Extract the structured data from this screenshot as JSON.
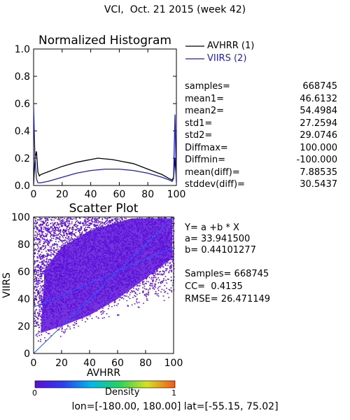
{
  "header": {
    "title": "VCI,  Oct. 21 2015 (week 42)"
  },
  "colors": {
    "avhrr": "#000000",
    "viirs": "#1f1fc0",
    "scatter": "#5b10d8",
    "fit_line": "#2a5cff"
  },
  "legend": {
    "avhrr_label": "AVHRR (1)",
    "viirs_label": "VIIRS (2)"
  },
  "stats": [
    {
      "key": "samples=",
      "value": "668745"
    },
    {
      "key": "mean1=",
      "value": "46.6132"
    },
    {
      "key": "mean2=",
      "value": "54.4984"
    },
    {
      "key": "std1=",
      "value": "27.2594"
    },
    {
      "key": "std2=",
      "value": "29.0746"
    },
    {
      "key": "Diffmax=",
      "value": "100.000"
    },
    {
      "key": "Diffmin=",
      "value": "-100.000"
    },
    {
      "key": "mean(diff)=",
      "value": "7.88535"
    },
    {
      "key": "stddev(diff)=",
      "value": "30.5437"
    }
  ],
  "fit": {
    "equation": "Y= a +b * X",
    "a_text": "a= 33.941500",
    "b_text": "b= 0.44101277",
    "samples_text": "Samples= 668745",
    "cc_text": "CC=  0.4135",
    "rmse_text": "RMSE= 26.471149"
  },
  "colorbar": {
    "min_label": "0",
    "max_label": "1",
    "title": "Density"
  },
  "footer": {
    "bounds": "lon=[-180.00, 180.00] lat=[-55.15, 75.02]"
  },
  "chart_data": [
    {
      "type": "line",
      "title": "Normalized Histogram",
      "xlim": [
        0,
        100
      ],
      "ylim": [
        0,
        1.0
      ],
      "xticks": [
        "0",
        "20",
        "40",
        "60",
        "80",
        "100"
      ],
      "yticks": [
        "0.0",
        "0.2",
        "0.4",
        "0.6",
        "0.8",
        "1.0"
      ],
      "series": [
        {
          "name": "AVHRR (1)",
          "x": [
            0,
            1,
            2,
            3,
            4,
            5,
            10,
            20,
            30,
            40,
            45,
            50,
            55,
            60,
            70,
            80,
            90,
            95,
            97,
            98,
            99,
            100
          ],
          "y": [
            0.01,
            0.2,
            0.25,
            0.1,
            0.07,
            0.08,
            0.1,
            0.14,
            0.17,
            0.19,
            0.2,
            0.195,
            0.19,
            0.18,
            0.16,
            0.12,
            0.08,
            0.05,
            0.04,
            0.06,
            0.2,
            0.03
          ]
        },
        {
          "name": "VIIRS (2)",
          "x": [
            0,
            1,
            2,
            3,
            5,
            10,
            20,
            30,
            40,
            50,
            55,
            60,
            70,
            80,
            90,
            95,
            97,
            98,
            99,
            100
          ],
          "y": [
            0.57,
            0.2,
            0.05,
            0.02,
            0.02,
            0.03,
            0.06,
            0.09,
            0.11,
            0.12,
            0.12,
            0.12,
            0.11,
            0.09,
            0.06,
            0.04,
            0.03,
            0.05,
            0.52,
            0.02
          ]
        }
      ]
    },
    {
      "type": "scatter",
      "title": "Scatter Plot",
      "xlabel": "AVHRR",
      "ylabel": "VIIRS",
      "xlim": [
        0,
        100
      ],
      "ylim": [
        0,
        100
      ],
      "xticks": [
        "0",
        "20",
        "40",
        "60",
        "80",
        "100"
      ],
      "yticks": [
        "0",
        "20",
        "40",
        "60",
        "80",
        "100"
      ],
      "regression": {
        "a": 33.9415,
        "b": 0.44101277
      },
      "note": "dense cloud of points spanning most of the square, thinning toward the lower-right corner"
    }
  ]
}
